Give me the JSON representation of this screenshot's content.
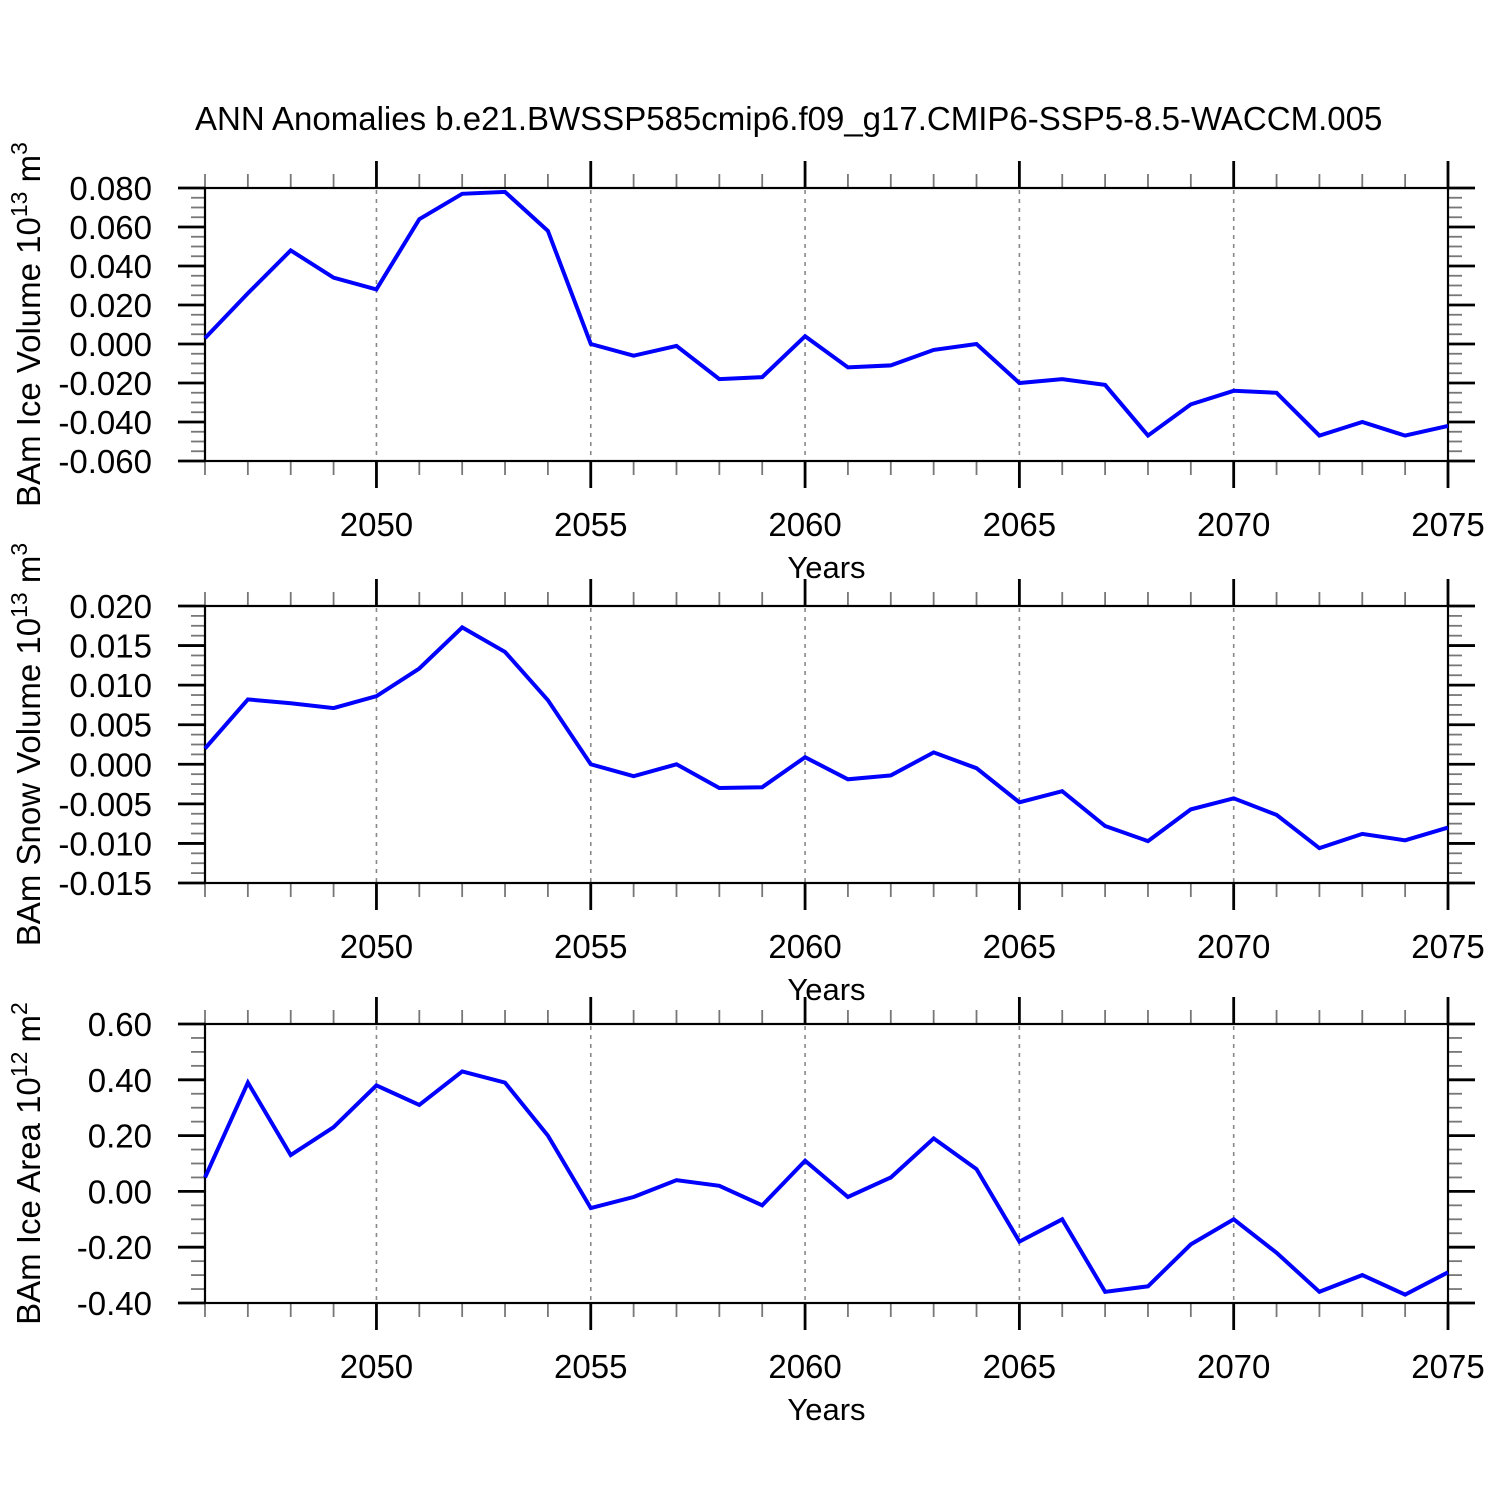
{
  "title": "ANN Anomalies b.e21.BWSSP585cmip6.f09_g17.CMIP6-SSP5-8.5-WACCM.005",
  "style": {
    "line_color": "#0000ff",
    "grid_color": "#888888",
    "axis_color": "#000000",
    "minor_tick_color": "#777777",
    "background": "#ffffff"
  },
  "chart_data": [
    {
      "id": "ice-volume",
      "type": "line",
      "title": "",
      "ylabel": "BAm Ice Volume 10¹³ m³",
      "ylabel_parts": [
        {
          "t": "BAm Ice Volume 10"
        },
        {
          "t": "13",
          "sup": true
        },
        {
          "t": " m"
        },
        {
          "t": "3",
          "sup": true
        }
      ],
      "xlabel": "Years",
      "x": [
        2046,
        2047,
        2048,
        2049,
        2050,
        2051,
        2052,
        2053,
        2054,
        2055,
        2056,
        2057,
        2058,
        2059,
        2060,
        2061,
        2062,
        2063,
        2064,
        2065,
        2066,
        2067,
        2068,
        2069,
        2070,
        2071,
        2072,
        2073,
        2074,
        2075
      ],
      "values": [
        0.003,
        0.026,
        0.048,
        0.034,
        0.028,
        0.064,
        0.077,
        0.078,
        0.058,
        0.0,
        -0.006,
        -0.001,
        -0.018,
        -0.017,
        0.004,
        -0.012,
        -0.011,
        -0.003,
        0.0,
        -0.02,
        -0.018,
        -0.021,
        -0.047,
        -0.031,
        -0.024,
        -0.025,
        -0.047,
        -0.04,
        -0.047,
        -0.042
      ],
      "xlim": [
        2046,
        2075
      ],
      "ylim": [
        -0.06,
        0.08
      ],
      "xticks": [
        2050,
        2055,
        2060,
        2065,
        2070,
        2075
      ],
      "xtick_major_step": 5,
      "grid_x": [
        2050,
        2055,
        2060,
        2065,
        2070
      ],
      "ytick_step": 0.02,
      "yminor_step": 0.005,
      "ytick_decimals": 3,
      "grid": "vertical-dashed",
      "legend": "none"
    },
    {
      "id": "snow-volume",
      "type": "line",
      "title": "",
      "ylabel": "BAm Snow Volume 10¹³ m³",
      "ylabel_parts": [
        {
          "t": "BAm Snow Volume 10"
        },
        {
          "t": "13",
          "sup": true
        },
        {
          "t": " m"
        },
        {
          "t": "3",
          "sup": true
        }
      ],
      "xlabel": "Years",
      "x": [
        2046,
        2047,
        2048,
        2049,
        2050,
        2051,
        2052,
        2053,
        2054,
        2055,
        2056,
        2057,
        2058,
        2059,
        2060,
        2061,
        2062,
        2063,
        2064,
        2065,
        2066,
        2067,
        2068,
        2069,
        2070,
        2071,
        2072,
        2073,
        2074,
        2075
      ],
      "values": [
        0.002,
        0.0082,
        0.0077,
        0.0071,
        0.0086,
        0.0121,
        0.0173,
        0.0142,
        0.0081,
        0.0,
        -0.0015,
        0.0,
        -0.003,
        -0.0029,
        0.0009,
        -0.0019,
        -0.0014,
        0.0015,
        -0.0005,
        -0.0048,
        -0.0034,
        -0.0078,
        -0.0097,
        -0.0057,
        -0.0043,
        -0.0064,
        -0.0106,
        -0.0088,
        -0.0096,
        -0.008
      ],
      "xlim": [
        2046,
        2075
      ],
      "ylim": [
        -0.015,
        0.02
      ],
      "xticks": [
        2050,
        2055,
        2060,
        2065,
        2070,
        2075
      ],
      "xtick_major_step": 5,
      "grid_x": [
        2050,
        2055,
        2060,
        2065,
        2070
      ],
      "ytick_step": 0.005,
      "yminor_step": 0.00125,
      "ytick_decimals": 3,
      "grid": "vertical-dashed",
      "legend": "none"
    },
    {
      "id": "ice-area",
      "type": "line",
      "title": "",
      "ylabel": "BAm Ice Area 10¹² m²",
      "ylabel_parts": [
        {
          "t": "BAm Ice Area 10"
        },
        {
          "t": "12",
          "sup": true
        },
        {
          "t": " m"
        },
        {
          "t": "2",
          "sup": true
        }
      ],
      "xlabel": "Years",
      "x": [
        2046,
        2047,
        2048,
        2049,
        2050,
        2051,
        2052,
        2053,
        2054,
        2055,
        2056,
        2057,
        2058,
        2059,
        2060,
        2061,
        2062,
        2063,
        2064,
        2065,
        2066,
        2067,
        2068,
        2069,
        2070,
        2071,
        2072,
        2073,
        2074,
        2075
      ],
      "values": [
        0.05,
        0.39,
        0.13,
        0.23,
        0.38,
        0.31,
        0.43,
        0.39,
        0.2,
        -0.06,
        -0.02,
        0.04,
        0.02,
        -0.05,
        0.11,
        -0.02,
        0.05,
        0.19,
        0.08,
        -0.18,
        -0.1,
        -0.36,
        -0.34,
        -0.19,
        -0.1,
        -0.22,
        -0.36,
        -0.3,
        -0.37,
        -0.29
      ],
      "xlim": [
        2046,
        2075
      ],
      "ylim": [
        -0.4,
        0.6
      ],
      "xticks": [
        2050,
        2055,
        2060,
        2065,
        2070,
        2075
      ],
      "xtick_major_step": 5,
      "grid_x": [
        2050,
        2055,
        2060,
        2065,
        2070
      ],
      "ytick_step": 0.2,
      "yminor_step": 0.05,
      "ytick_decimals": 2,
      "grid": "vertical-dashed",
      "legend": "none"
    }
  ]
}
